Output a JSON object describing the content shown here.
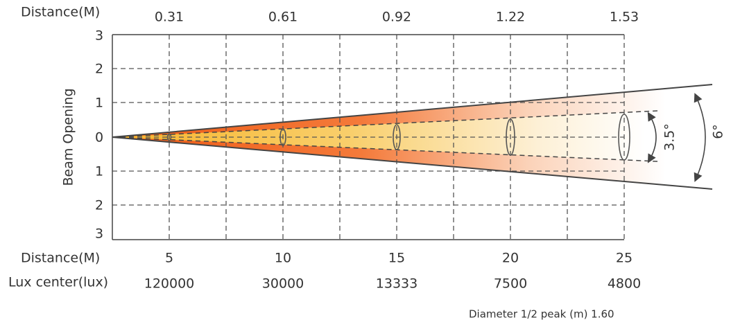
{
  "top_axis": {
    "label": "Distance(M)",
    "ticks": [
      "0.31",
      "0.61",
      "0.92",
      "1.22",
      "1.53"
    ]
  },
  "y_axis": {
    "label": "Beam Opening",
    "ticks": [
      "3",
      "2",
      "1",
      "0",
      "1",
      "2",
      "3"
    ]
  },
  "bottom_rows": [
    {
      "label": "Distance(M)",
      "values": [
        "5",
        "10",
        "15",
        "20",
        "25"
      ]
    },
    {
      "label": "Lux center(lux)",
      "values": [
        "120000",
        "30000",
        "13333",
        "7500",
        "4800"
      ]
    }
  ],
  "angles": {
    "inner": "3.5°",
    "outer": "6°"
  },
  "footnote": "Diameter 1/2 peak (m) 1.60"
}
